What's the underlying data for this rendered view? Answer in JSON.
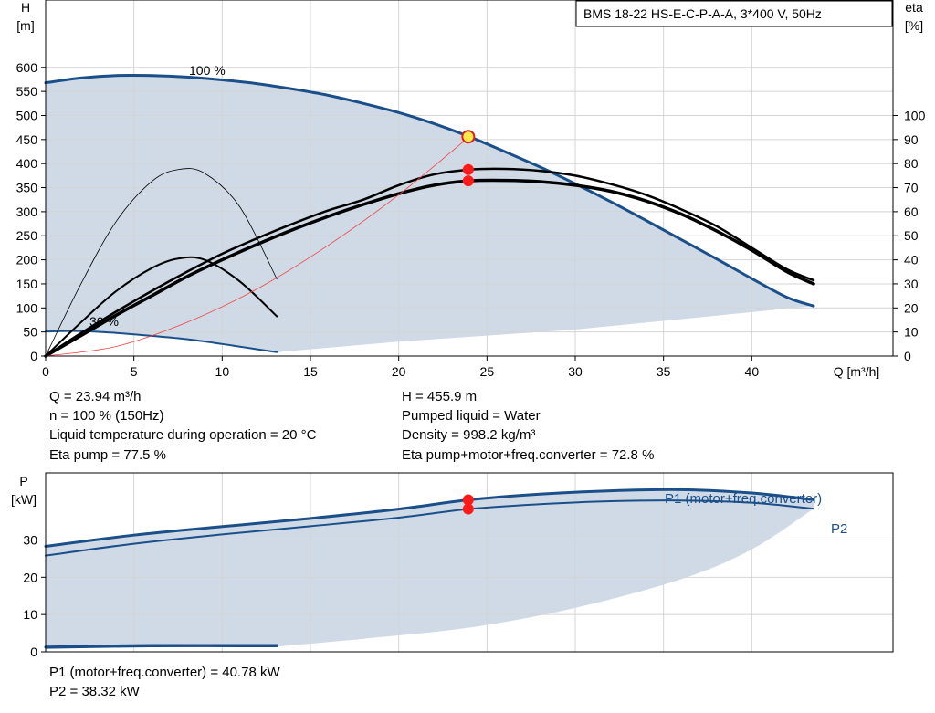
{
  "chart_data": [
    {
      "type": "line",
      "title": "BMS 18-22 HS-E-C-P-A-A, 3*400 V, 50Hz",
      "xlabel": "Q [m³/h]",
      "ylabel_left_name": "H",
      "ylabel_left_unit": "[m]",
      "ylabel_right_name": "eta",
      "ylabel_right_unit": "[%]",
      "xlim": [
        0,
        48
      ],
      "ylim_left": [
        0,
        740
      ],
      "ylim_right": [
        0,
        148
      ],
      "x_ticks": [
        0,
        5,
        10,
        15,
        20,
        25,
        30,
        35,
        40
      ],
      "y_ticks_left": [
        0,
        50,
        100,
        150,
        200,
        250,
        300,
        350,
        400,
        450,
        500,
        550,
        600
      ],
      "y_ticks_right": [
        0,
        10,
        20,
        30,
        40,
        50,
        60,
        70,
        80,
        90,
        100
      ],
      "grid": true,
      "annotations": [
        "100 %",
        "30 %"
      ],
      "operating_point": {
        "q": 23.94,
        "h": 455.9,
        "eta_pump": 77.5,
        "eta_total": 72.8
      },
      "series": [
        {
          "role": "h-100",
          "axis": "left",
          "color": "#1a4f8a",
          "width": 3,
          "x": [
            0,
            2,
            4,
            6,
            8,
            10,
            12,
            14,
            16,
            18,
            20,
            22,
            24,
            26,
            28,
            30,
            32,
            34,
            36,
            38,
            40,
            42,
            43.5
          ],
          "y": [
            568,
            578,
            583,
            583,
            580,
            574,
            566,
            555,
            542,
            525,
            506,
            483,
            456,
            425,
            393,
            358,
            321,
            282,
            242,
            202,
            161,
            122,
            104
          ]
        },
        {
          "role": "h-30",
          "axis": "left",
          "color": "#1a4f8a",
          "width": 2,
          "x": [
            0,
            2,
            4,
            6,
            8,
            10,
            12,
            13.1
          ],
          "y": [
            51,
            52,
            48,
            42,
            35,
            25,
            14,
            8
          ]
        },
        {
          "role": "eta-pump-100",
          "axis": "right",
          "color": "#000000",
          "width": 2.5,
          "x": [
            0,
            2,
            4,
            6,
            8,
            10,
            12,
            14,
            16,
            18,
            20,
            22,
            24,
            26,
            28,
            30,
            32,
            34,
            36,
            38,
            40,
            42,
            43.5
          ],
          "y": [
            0,
            9.5,
            18.5,
            27,
            35,
            42.5,
            49,
            55,
            60.5,
            65,
            71,
            75.5,
            77.5,
            77.8,
            77,
            75,
            71.5,
            67,
            61,
            54,
            45,
            36,
            31.5
          ]
        },
        {
          "role": "eta-total-100",
          "axis": "right",
          "color": "#000000",
          "width": 3.5,
          "x": [
            0,
            2,
            4,
            6,
            8,
            10,
            12,
            14,
            16,
            18,
            20,
            22,
            24,
            26,
            28,
            30,
            32,
            34,
            36,
            38,
            40,
            42,
            43.5
          ],
          "y": [
            0,
            8.5,
            17,
            25,
            33,
            40,
            46.5,
            52.5,
            58,
            63,
            67.5,
            71,
            72.8,
            73,
            72.5,
            71,
            68.5,
            64.5,
            59,
            52,
            44,
            35,
            30
          ]
        },
        {
          "role": "eta-pump-30",
          "axis": "right",
          "color": "#000000",
          "width": 2,
          "x": [
            0,
            2,
            4,
            6,
            7.5,
            9,
            11,
            13.1
          ],
          "y": [
            0,
            14,
            27,
            36.5,
            40.5,
            40,
            31,
            16.5
          ]
        },
        {
          "role": "eta-total-30",
          "axis": "right",
          "color": "#000000",
          "width": 0.8,
          "x": [
            0,
            2,
            4,
            6,
            7.5,
            9,
            11,
            13.1
          ],
          "y": [
            0,
            30,
            56,
            72.5,
            77.5,
            76,
            62,
            32
          ]
        },
        {
          "role": "system-curve",
          "axis": "left",
          "color": "#ee4444",
          "width": 0.8,
          "x": [
            0,
            4,
            8,
            12,
            16,
            20,
            24
          ],
          "y": [
            0,
            20,
            70,
            140,
            230,
            335,
            455.9
          ]
        }
      ],
      "area_lower": {
        "axis": "left",
        "x": [
          13.1,
          20,
          30,
          43.5
        ],
        "y": [
          8,
          30,
          55,
          104
        ]
      },
      "markers": [
        {
          "axis": "left",
          "x": 23.94,
          "y": 455.9,
          "style": "yellow"
        },
        {
          "axis": "right",
          "x": 23.94,
          "y": 77.5,
          "style": "red"
        },
        {
          "axis": "right",
          "x": 23.94,
          "y": 72.8,
          "style": "red"
        }
      ]
    },
    {
      "type": "line",
      "ylabel_name": "P",
      "ylabel_unit": "[kW]",
      "xlim": [
        0,
        48
      ],
      "ylim": [
        0,
        48
      ],
      "y_ticks": [
        0,
        10,
        20,
        30
      ],
      "grid": true,
      "legend_labels": [
        "P1 (motor+freq.converter)",
        "P2"
      ],
      "series": [
        {
          "role": "p1-100",
          "color": "#1a4f8a",
          "width": 3,
          "x": [
            0,
            5,
            10,
            15,
            20,
            24,
            28,
            32,
            36,
            40,
            43.5
          ],
          "y": [
            28.3,
            31.3,
            33.6,
            35.8,
            38.3,
            40.78,
            42.3,
            43.2,
            43.5,
            42.6,
            40.8
          ]
        },
        {
          "role": "p2-100",
          "color": "#1a4f8a",
          "width": 2,
          "x": [
            0,
            5,
            10,
            15,
            20,
            24,
            28,
            32,
            36,
            40,
            43.5
          ],
          "y": [
            25.8,
            29,
            31.5,
            33.7,
            36,
            38.32,
            39.6,
            40.4,
            40.6,
            40,
            38.4
          ]
        },
        {
          "role": "p1-30",
          "color": "#1a4f8a",
          "width": 3,
          "x": [
            0,
            6,
            13.1
          ],
          "y": [
            1.3,
            1.7,
            1.7
          ]
        },
        {
          "role": "p2-30",
          "color": "#1a4f8a",
          "width": 1.5,
          "x": [
            0,
            6,
            13.1
          ],
          "y": [
            1.0,
            1.4,
            1.4
          ]
        }
      ],
      "area_lower": {
        "x": [
          13.1,
          18,
          24,
          30,
          36,
          40,
          43.5
        ],
        "y": [
          1.4,
          3.5,
          6.5,
          11.8,
          19.5,
          27.5,
          38.4
        ]
      },
      "markers": [
        {
          "x": 23.94,
          "y": 40.78,
          "style": "red"
        },
        {
          "x": 23.94,
          "y": 38.32,
          "style": "red"
        }
      ]
    }
  ],
  "info": {
    "q": "Q = 23.94 m³/h",
    "n": "n = 100 % (150Hz)",
    "temp": "Liquid temperature during operation = 20 °C",
    "eta_pump": "Eta pump = 77.5 %",
    "h": "H = 455.9 m",
    "liquid": "Pumped liquid = Water",
    "density": "Density = 998.2 kg/m³",
    "eta_total": "Eta pump+motor+freq.converter = 72.8 %",
    "p1": "P1 (motor+freq.converter) = 40.78 kW",
    "p2": "P2 = 38.32 kW"
  }
}
